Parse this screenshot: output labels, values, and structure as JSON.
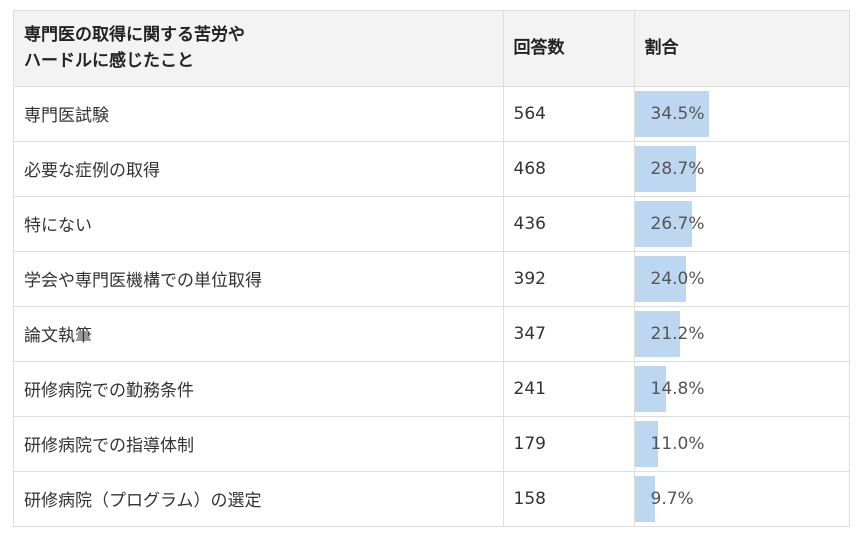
{
  "table": {
    "headers": {
      "question": "専門医の取得に関する苦労や\nハードルに感じたこと",
      "count": "回答数",
      "ratio": "割合"
    },
    "bar_color": "#bcd7ef",
    "rows": [
      {
        "label": "専門医試験",
        "count": "564",
        "ratio": "34.5%",
        "ratio_value": 34.5
      },
      {
        "label": "必要な症例の取得",
        "count": "468",
        "ratio": "28.7%",
        "ratio_value": 28.7
      },
      {
        "label": "特にない",
        "count": "436",
        "ratio": "26.7%",
        "ratio_value": 26.7
      },
      {
        "label": "学会や専門医機構での単位取得",
        "count": "392",
        "ratio": "24.0%",
        "ratio_value": 24.0
      },
      {
        "label": "論文執筆",
        "count": "347",
        "ratio": "21.2%",
        "ratio_value": 21.2
      },
      {
        "label": "研修病院での勤務条件",
        "count": "241",
        "ratio": "14.8%",
        "ratio_value": 14.8
      },
      {
        "label": "研修病院での指導体制",
        "count": "179",
        "ratio": "11.0%",
        "ratio_value": 11.0
      },
      {
        "label": "研修病院（プログラム）の選定",
        "count": "158",
        "ratio": "9.7%",
        "ratio_value": 9.7
      }
    ]
  }
}
